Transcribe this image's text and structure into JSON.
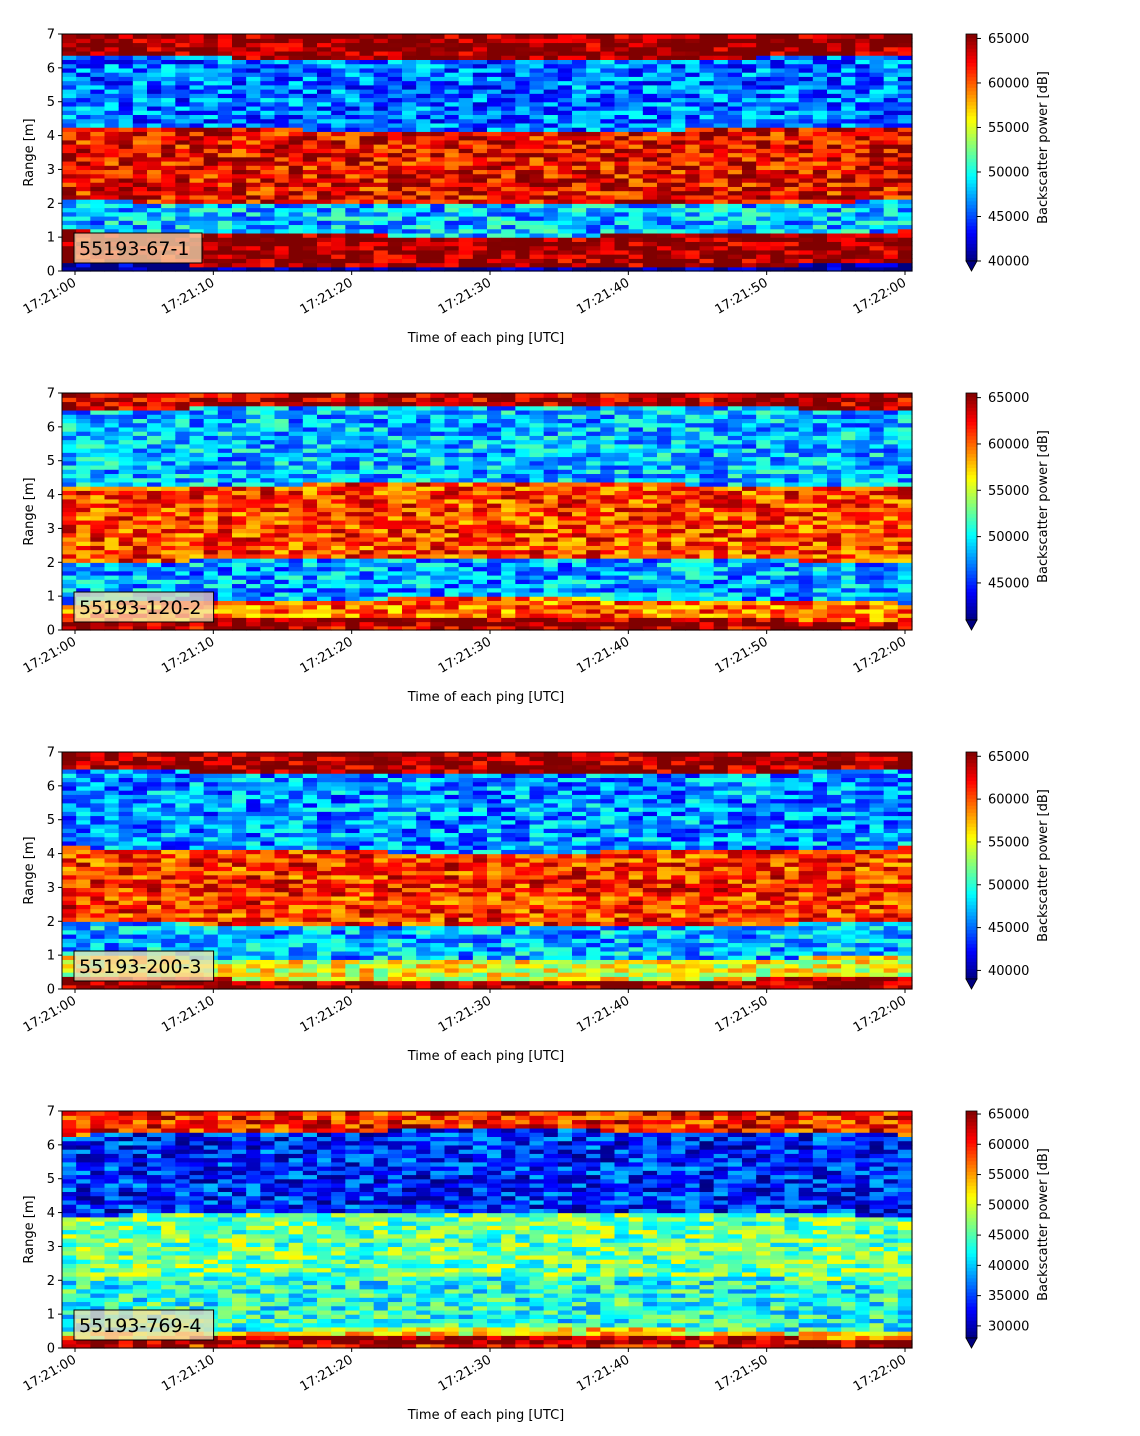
{
  "chart_data": [
    {
      "type": "heatmap",
      "label": "55193-67-1",
      "xlabel": "Time of each ping [UTC]",
      "ylabel": "Range [m]",
      "x_ticks": [
        "17:21:00",
        "17:21:10",
        "17:21:20",
        "17:21:30",
        "17:21:40",
        "17:21:50",
        "17:22:00"
      ],
      "ylim": [
        0,
        7
      ],
      "y_ticks": [
        "0",
        "1",
        "2",
        "3",
        "4",
        "5",
        "6",
        "7"
      ],
      "colorbar_label": "Backscatter power [dB]",
      "colorbar_range": [
        40000,
        65500
      ],
      "colorbar_ticks": [
        "40000",
        "45000",
        "50000",
        "55000",
        "60000",
        "65000"
      ],
      "colormap": "jet",
      "bands": [
        {
          "range": [
            0,
            0.25
          ],
          "value": 40000
        },
        {
          "range": [
            0.25,
            1.2
          ],
          "value": 65000
        },
        {
          "range": [
            1.2,
            2.1
          ],
          "value": 48000
        },
        {
          "range": [
            2.1,
            4.3
          ],
          "value": 62500
        },
        {
          "range": [
            4.3,
            6.4
          ],
          "value": 46000
        },
        {
          "range": [
            6.4,
            7.0
          ],
          "value": 65500
        }
      ]
    },
    {
      "type": "heatmap",
      "label": "55193-120-2",
      "xlabel": "Time of each ping [UTC]",
      "ylabel": "Range [m]",
      "x_ticks": [
        "17:21:00",
        "17:21:10",
        "17:21:20",
        "17:21:30",
        "17:21:40",
        "17:21:50",
        "17:22:00"
      ],
      "ylim": [
        0,
        7
      ],
      "y_ticks": [
        "0",
        "1",
        "2",
        "3",
        "4",
        "5",
        "6",
        "7"
      ],
      "colorbar_label": "Backscatter power [dB]",
      "colorbar_range": [
        41000,
        65500
      ],
      "colorbar_ticks": [
        "45000",
        "50000",
        "55000",
        "60000",
        "65000"
      ],
      "colormap": "jet",
      "bands": [
        {
          "range": [
            0,
            0.25
          ],
          "value": 65000
        },
        {
          "range": [
            0.25,
            0.8
          ],
          "value": 60000
        },
        {
          "range": [
            0.8,
            2.0
          ],
          "value": 48000
        },
        {
          "range": [
            2.0,
            4.2
          ],
          "value": 61000
        },
        {
          "range": [
            4.2,
            6.5
          ],
          "value": 48500
        },
        {
          "range": [
            6.5,
            7.0
          ],
          "value": 64000
        }
      ]
    },
    {
      "type": "heatmap",
      "label": "55193-200-3",
      "xlabel": "Time of each ping [UTC]",
      "ylabel": "Range [m]",
      "x_ticks": [
        "17:21:00",
        "17:21:10",
        "17:21:20",
        "17:21:30",
        "17:21:40",
        "17:21:50",
        "17:22:00"
      ],
      "ylim": [
        0,
        7
      ],
      "y_ticks": [
        "0",
        "1",
        "2",
        "3",
        "4",
        "5",
        "6",
        "7"
      ],
      "colorbar_label": "Backscatter power [dB]",
      "colorbar_range": [
        39000,
        65500
      ],
      "colorbar_ticks": [
        "40000",
        "45000",
        "50000",
        "55000",
        "60000",
        "65000"
      ],
      "colormap": "jet",
      "bands": [
        {
          "range": [
            0,
            0.4
          ],
          "value": 65000
        },
        {
          "range": [
            0.4,
            1.0
          ],
          "value": 55000
        },
        {
          "range": [
            1.0,
            2.0
          ],
          "value": 47000
        },
        {
          "range": [
            2.0,
            4.2
          ],
          "value": 61000
        },
        {
          "range": [
            4.2,
            6.5
          ],
          "value": 46000
        },
        {
          "range": [
            6.5,
            7.0
          ],
          "value": 65000
        }
      ]
    },
    {
      "type": "heatmap",
      "label": "55193-769-4",
      "xlabel": "Time of each ping [UTC]",
      "ylabel": "Range [m]",
      "x_ticks": [
        "17:21:00",
        "17:21:10",
        "17:21:20",
        "17:21:30",
        "17:21:40",
        "17:21:50",
        "17:22:00"
      ],
      "ylim": [
        0,
        7
      ],
      "y_ticks": [
        "0",
        "1",
        "2",
        "3",
        "4",
        "5",
        "6",
        "7"
      ],
      "colorbar_label": "Backscatter power [dB]",
      "colorbar_range": [
        28000,
        65500
      ],
      "colorbar_ticks": [
        "30000",
        "35000",
        "40000",
        "45000",
        "50000",
        "55000",
        "60000",
        "65000"
      ],
      "colormap": "jet",
      "bands": [
        {
          "range": [
            0,
            0.25
          ],
          "value": 65000
        },
        {
          "range": [
            0.25,
            0.45
          ],
          "value": 52000
        },
        {
          "range": [
            0.45,
            2.0
          ],
          "value": 43000
        },
        {
          "range": [
            2.0,
            3.9
          ],
          "value": 46000
        },
        {
          "range": [
            3.9,
            6.3
          ],
          "value": 34000
        },
        {
          "range": [
            6.3,
            7.0
          ],
          "value": 60000
        }
      ]
    }
  ]
}
